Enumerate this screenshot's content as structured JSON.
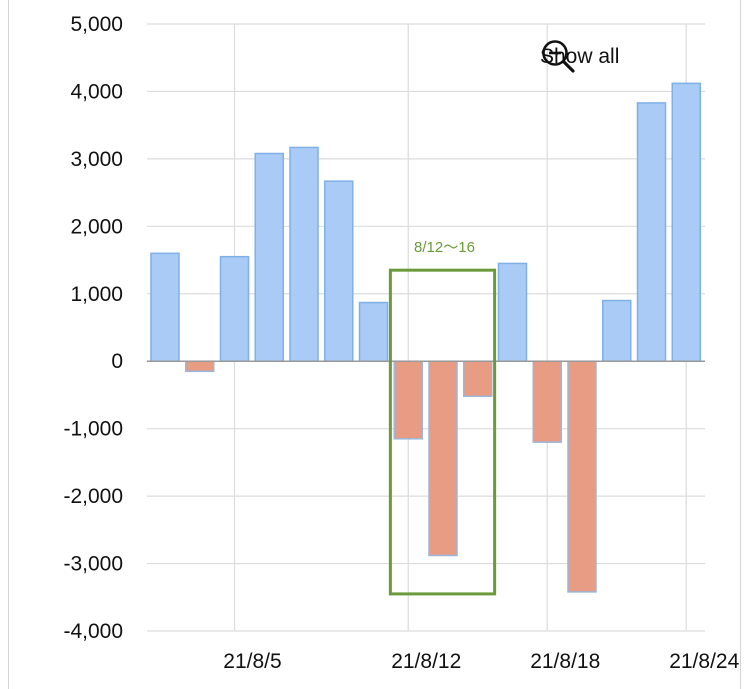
{
  "controls": {
    "show_all_label": "Show all",
    "show_all_icon": "zoom-out-icon"
  },
  "colors": {
    "positive_fill": "#a9cbf5",
    "positive_stroke": "#7fb0e6",
    "negative_fill": "#e89c84",
    "negative_stroke": "#9bb6d8",
    "highlight_box": "#6a9a3a",
    "grid": "#dcdcdc",
    "zero_line": "#999999"
  },
  "chart_data": {
    "type": "bar",
    "grid": true,
    "ylim": [
      -4000,
      5000
    ],
    "y_ticks": [
      5000,
      4000,
      3000,
      2000,
      1000,
      0,
      -1000,
      -2000,
      -3000,
      -4000
    ],
    "y_tick_labels": [
      "5,000",
      "4,000",
      "3,000",
      "2,000",
      "1,000",
      "0",
      "-1,000",
      "-2,000",
      "-3,000",
      "-4,000"
    ],
    "x_tick_labels": [
      {
        "label": "21/8/5",
        "category": "21/8/5"
      },
      {
        "label": "21/8/12",
        "category": "21/8/12"
      },
      {
        "label": "21/8/18",
        "category": "21/8/18"
      },
      {
        "label": "21/8/24",
        "category": "21/8/24"
      }
    ],
    "categories": [
      "21/8/3",
      "21/8/4",
      "21/8/5",
      "21/8/6",
      "21/8/7",
      "21/8/8",
      "21/8/11",
      "21/8/12",
      "21/8/13",
      "21/8/16",
      "21/8/17",
      "21/8/18",
      "21/8/19",
      "21/8/20",
      "21/8/23",
      "21/8/24"
    ],
    "values": [
      1600,
      -150,
      1550,
      3080,
      3170,
      2670,
      870,
      -1150,
      -2880,
      -520,
      1450,
      -1200,
      -3420,
      900,
      3830,
      4120
    ],
    "annotations": [
      {
        "text": "8/12〜16",
        "from_category": "21/8/12",
        "to_category": "21/8/16",
        "y_range": [
          -3450,
          1350
        ]
      }
    ]
  }
}
